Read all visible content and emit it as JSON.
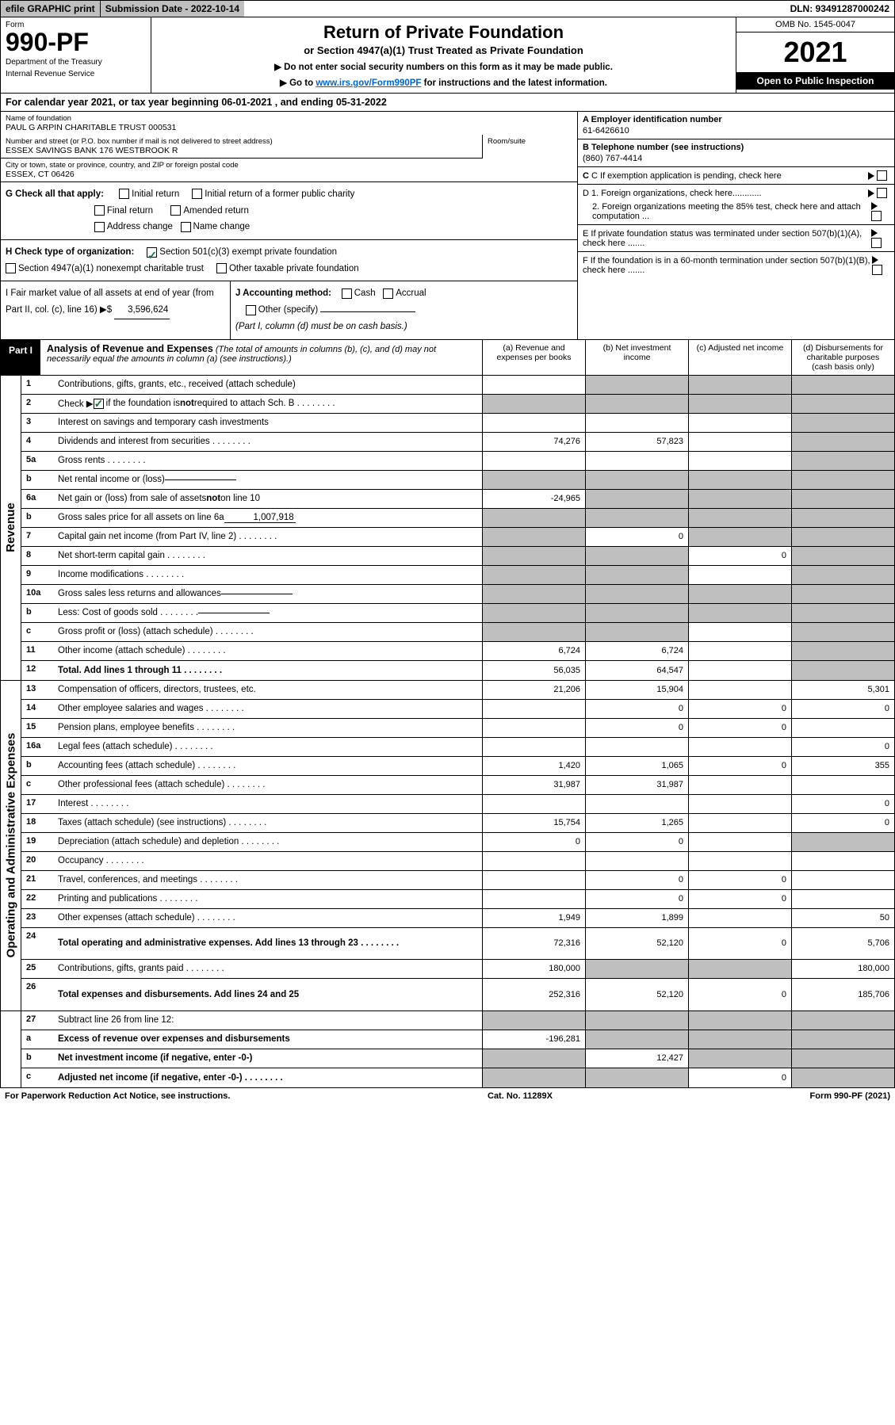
{
  "topbar": {
    "efile": "efile GRAPHIC print",
    "subdate_label": "Submission Date - 2022-10-14",
    "dln": "DLN: 93491287000242"
  },
  "header": {
    "form_label": "Form",
    "form_number": "990-PF",
    "dept1": "Department of the Treasury",
    "dept2": "Internal Revenue Service",
    "title": "Return of Private Foundation",
    "sub1": "or Section 4947(a)(1) Trust Treated as Private Foundation",
    "sub2a": "▶ Do not enter social security numbers on this form as it may be made public.",
    "sub2b": "▶ Go to ",
    "link": "www.irs.gov/Form990PF",
    "sub2c": " for instructions and the latest information.",
    "omb": "OMB No. 1545-0047",
    "year": "2021",
    "open": "Open to Public Inspection"
  },
  "calyear": "For calendar year 2021, or tax year beginning 06-01-2021                           , and ending 05-31-2022",
  "info": {
    "name_label": "Name of foundation",
    "name": "PAUL G ARPIN CHARITABLE TRUST 000531",
    "addr_label": "Number and street (or P.O. box number if mail is not delivered to street address)",
    "addr": "ESSEX SAVINGS BANK 176 WESTBROOK R",
    "room": "Room/suite",
    "city_label": "City or town, state or province, country, and ZIP or foreign postal code",
    "city": "ESSEX, CT  06426",
    "g_label": "G Check all that apply:",
    "g_opts": [
      "Initial return",
      "Initial return of a former public charity",
      "Final return",
      "Amended return",
      "Address change",
      "Name change"
    ],
    "h_label": "H Check type of organization:",
    "h_opt1": "Section 501(c)(3) exempt private foundation",
    "h_opt2": "Section 4947(a)(1) nonexempt charitable trust",
    "h_opt3": "Other taxable private foundation",
    "i_label": "I Fair market value of all assets at end of year (from Part II, col. (c), line 16) ▶$",
    "i_val": "3,596,624",
    "j_label": "J Accounting method:",
    "j_opts": [
      "Cash",
      "Accrual"
    ],
    "j_other": "Other (specify)",
    "j_note": "(Part I, column (d) must be on cash basis.)",
    "a_label": "A Employer identification number",
    "a_val": "61-6426610",
    "b_label": "B Telephone number (see instructions)",
    "b_val": "(860) 767-4414",
    "c_label": "C If exemption application is pending, check here",
    "d1": "D 1. Foreign organizations, check here............",
    "d2": "2. Foreign organizations meeting the 85% test, check here and attach computation ...",
    "e_label": "E  If private foundation status was terminated under section 507(b)(1)(A), check here .......",
    "f_label": "F  If the foundation is in a 60-month termination under section 507(b)(1)(B), check here .......",
    "check_here": "▶"
  },
  "part1": {
    "label": "Part I",
    "title": "Analysis of Revenue and Expenses",
    "note": " (The total of amounts in columns (b), (c), and (d) may not necessarily equal the amounts in column (a) (see instructions).)",
    "cols": [
      "(a)   Revenue and expenses per books",
      "(b)   Net investment income",
      "(c)   Adjusted net income",
      "(d)  Disbursements for charitable purposes (cash basis only)"
    ]
  },
  "side_rev": "Revenue",
  "side_exp": "Operating and Administrative Expenses",
  "rows": [
    {
      "n": "1",
      "d": "Contributions, gifts, grants, etc., received (attach schedule)",
      "a": "",
      "b": "g",
      "c": "g",
      "dd": "g"
    },
    {
      "n": "2",
      "d": "Check ▶ ☑ if the foundation is not required to attach Sch. B",
      "a": "g",
      "b": "g",
      "c": "g",
      "dd": "g",
      "dots": true
    },
    {
      "n": "3",
      "d": "Interest on savings and temporary cash investments",
      "a": "",
      "b": "",
      "c": "",
      "dd": "g"
    },
    {
      "n": "4",
      "d": "Dividends and interest from securities",
      "a": "74,276",
      "b": "57,823",
      "c": "",
      "dd": "g",
      "dots": true
    },
    {
      "n": "5a",
      "d": "Gross rents",
      "a": "",
      "b": "",
      "c": "",
      "dd": "g",
      "dots": true
    },
    {
      "n": "b",
      "d": "Net rental income or (loss)",
      "a": "g",
      "b": "g",
      "c": "g",
      "dd": "g",
      "inline": true
    },
    {
      "n": "6a",
      "d": "Net gain or (loss) from sale of assets not on line 10",
      "a": "-24,965",
      "b": "g",
      "c": "g",
      "dd": "g"
    },
    {
      "n": "b",
      "d": "Gross sales price for all assets on line 6a",
      "a": "g",
      "b": "g",
      "c": "g",
      "dd": "g",
      "inline": true,
      "inlineval": "1,007,918"
    },
    {
      "n": "7",
      "d": "Capital gain net income (from Part IV, line 2)",
      "a": "g",
      "b": "0",
      "c": "g",
      "dd": "g",
      "dots": true
    },
    {
      "n": "8",
      "d": "Net short-term capital gain",
      "a": "g",
      "b": "g",
      "c": "0",
      "dd": "g",
      "dots": true
    },
    {
      "n": "9",
      "d": "Income modifications",
      "a": "g",
      "b": "g",
      "c": "",
      "dd": "g",
      "dots": true
    },
    {
      "n": "10a",
      "d": "Gross sales less returns and allowances",
      "a": "g",
      "b": "g",
      "c": "g",
      "dd": "g",
      "inline": true
    },
    {
      "n": "b",
      "d": "Less: Cost of goods sold",
      "a": "g",
      "b": "g",
      "c": "g",
      "dd": "g",
      "inline": true,
      "dots": true
    },
    {
      "n": "c",
      "d": "Gross profit or (loss) (attach schedule)",
      "a": "g",
      "b": "g",
      "c": "",
      "dd": "g",
      "dots": true
    },
    {
      "n": "11",
      "d": "Other income (attach schedule)",
      "a": "6,724",
      "b": "6,724",
      "c": "",
      "dd": "g",
      "dots": true
    },
    {
      "n": "12",
      "d": "Total. Add lines 1 through 11",
      "a": "56,035",
      "b": "64,547",
      "c": "",
      "dd": "g",
      "bold": true,
      "dots": true
    }
  ],
  "rows2": [
    {
      "n": "13",
      "d": "Compensation of officers, directors, trustees, etc.",
      "a": "21,206",
      "b": "15,904",
      "c": "",
      "dd": "5,301"
    },
    {
      "n": "14",
      "d": "Other employee salaries and wages",
      "a": "",
      "b": "0",
      "c": "0",
      "dd": "0",
      "dots": true
    },
    {
      "n": "15",
      "d": "Pension plans, employee benefits",
      "a": "",
      "b": "0",
      "c": "0",
      "dd": "",
      "dots": true
    },
    {
      "n": "16a",
      "d": "Legal fees (attach schedule)",
      "a": "",
      "b": "",
      "c": "",
      "dd": "0",
      "dots": true
    },
    {
      "n": "b",
      "d": "Accounting fees (attach schedule)",
      "a": "1,420",
      "b": "1,065",
      "c": "0",
      "dd": "355",
      "dots": true
    },
    {
      "n": "c",
      "d": "Other professional fees (attach schedule)",
      "a": "31,987",
      "b": "31,987",
      "c": "",
      "dd": "",
      "dots": true
    },
    {
      "n": "17",
      "d": "Interest",
      "a": "",
      "b": "",
      "c": "",
      "dd": "0",
      "dots": true
    },
    {
      "n": "18",
      "d": "Taxes (attach schedule) (see instructions)",
      "a": "15,754",
      "b": "1,265",
      "c": "",
      "dd": "0",
      "dots": true
    },
    {
      "n": "19",
      "d": "Depreciation (attach schedule) and depletion",
      "a": "0",
      "b": "0",
      "c": "",
      "dd": "g",
      "dots": true
    },
    {
      "n": "20",
      "d": "Occupancy",
      "a": "",
      "b": "",
      "c": "",
      "dd": "",
      "dots": true
    },
    {
      "n": "21",
      "d": "Travel, conferences, and meetings",
      "a": "",
      "b": "0",
      "c": "0",
      "dd": "",
      "dots": true
    },
    {
      "n": "22",
      "d": "Printing and publications",
      "a": "",
      "b": "0",
      "c": "0",
      "dd": "",
      "dots": true
    },
    {
      "n": "23",
      "d": "Other expenses (attach schedule)",
      "a": "1,949",
      "b": "1,899",
      "c": "",
      "dd": "50",
      "dots": true
    },
    {
      "n": "24",
      "d": "Total operating and administrative expenses. Add lines 13 through 23",
      "a": "72,316",
      "b": "52,120",
      "c": "0",
      "dd": "5,706",
      "bold": true,
      "dots": true,
      "tall": true
    },
    {
      "n": "25",
      "d": "Contributions, gifts, grants paid",
      "a": "180,000",
      "b": "g",
      "c": "g",
      "dd": "180,000",
      "dots": true
    },
    {
      "n": "26",
      "d": "Total expenses and disbursements. Add lines 24 and 25",
      "a": "252,316",
      "b": "52,120",
      "c": "0",
      "dd": "185,706",
      "bold": true,
      "tall": true
    }
  ],
  "rows3": [
    {
      "n": "27",
      "d": "Subtract line 26 from line 12:",
      "a": "g",
      "b": "g",
      "c": "g",
      "dd": "g"
    },
    {
      "n": "a",
      "d": "Excess of revenue over expenses and disbursements",
      "a": "-196,281",
      "b": "g",
      "c": "g",
      "dd": "g",
      "bold": true
    },
    {
      "n": "b",
      "d": "Net investment income (if negative, enter -0-)",
      "a": "g",
      "b": "12,427",
      "c": "g",
      "dd": "g",
      "bold": true
    },
    {
      "n": "c",
      "d": "Adjusted net income (if negative, enter -0-)",
      "a": "g",
      "b": "g",
      "c": "0",
      "dd": "g",
      "bold": true,
      "dots": true
    }
  ],
  "footer": {
    "left": "For Paperwork Reduction Act Notice, see instructions.",
    "mid": "Cat. No. 11289X",
    "right": "Form 990-PF (2021)"
  }
}
